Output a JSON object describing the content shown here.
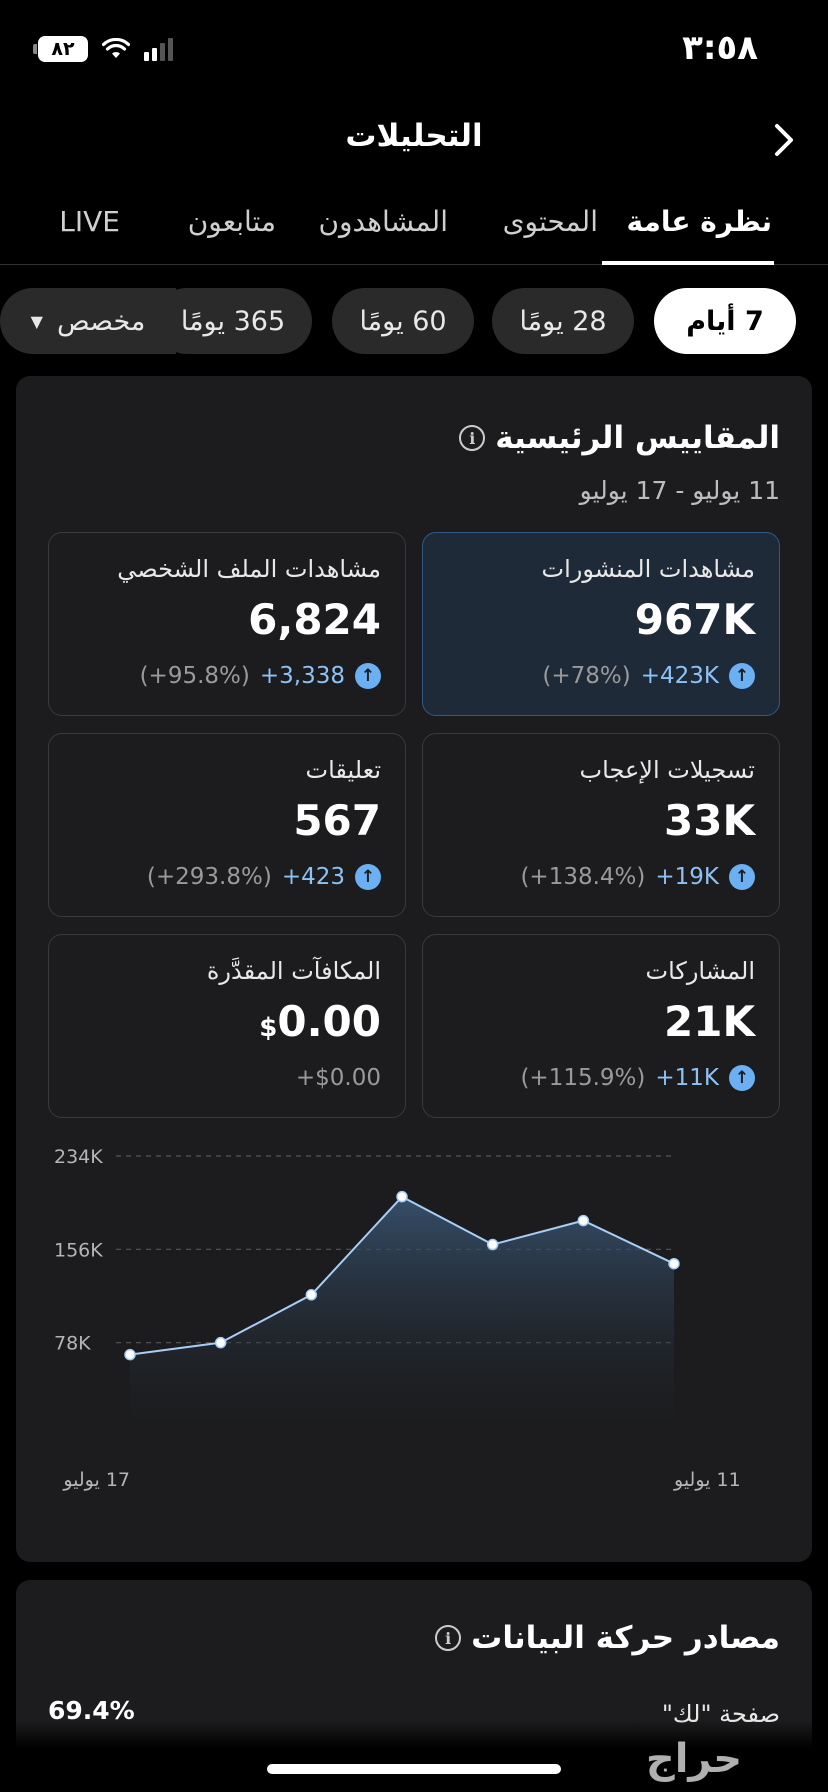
{
  "status": {
    "time": "٣:٥٨",
    "battery": "٨٢"
  },
  "header": {
    "title": "التحليلات"
  },
  "tabs": [
    {
      "label": "نظرة عامة",
      "active": true
    },
    {
      "label": "المحتوى"
    },
    {
      "label": "المشاهدون"
    },
    {
      "label": "متابعون"
    },
    {
      "label": "LIVE"
    }
  ],
  "periods": [
    {
      "label": "7 أيام",
      "active": true
    },
    {
      "label": "28 يومًا"
    },
    {
      "label": "60 يومًا"
    },
    {
      "label": "365 يومًا"
    },
    {
      "label": "مخصص"
    }
  ],
  "metrics": {
    "title": "المقاييس الرئيسية",
    "date_range": "11 يوليو - 17 يوليو",
    "items": [
      {
        "label": "مشاهدات المنشورات",
        "value": "967K",
        "change": "+423K",
        "percent": "(+78%)",
        "highlighted": true
      },
      {
        "label": "مشاهدات الملف الشخصي",
        "value": "6,824",
        "change": "+3,338",
        "percent": "(+95.8%)"
      },
      {
        "label": "تسجيلات الإعجاب",
        "value": "33K",
        "change": "+19K",
        "percent": "(+138.4%)"
      },
      {
        "label": "تعليقات",
        "value": "567",
        "change": "+423",
        "percent": "(+293.8%)"
      },
      {
        "label": "المشاركات",
        "value": "21K",
        "change": "+11K",
        "percent": "(+115.9%)"
      },
      {
        "label": "المكافآت المقدَّرة",
        "value": "0.00",
        "currency": "$",
        "change": "+$0.00"
      }
    ]
  },
  "chart_data": {
    "type": "area",
    "x": [
      "17 يوليو",
      "",
      "",
      "",
      "",
      "",
      "11 يوليو"
    ],
    "x_tick_labels": [
      "17 يوليو",
      "11 يوليو"
    ],
    "values": [
      68000,
      78000,
      118000,
      200000,
      160000,
      180000,
      144000
    ],
    "yticks": [
      "234K",
      "156K",
      "78K"
    ],
    "ylim": [
      0,
      234000
    ],
    "grid": true,
    "colors": {
      "line": "#a8cef5",
      "fill_top": "#3a5878",
      "grid": "#555555"
    }
  },
  "traffic": {
    "title": "مصادر حركة البيانات",
    "first_label": "صفحة \"لك\"",
    "first_value": "69.4%"
  },
  "watermark": "حراج",
  "colors": {
    "accent": "#6ab0f3",
    "card": "#1c1c1e",
    "highlight_card": "#1e2a38"
  }
}
